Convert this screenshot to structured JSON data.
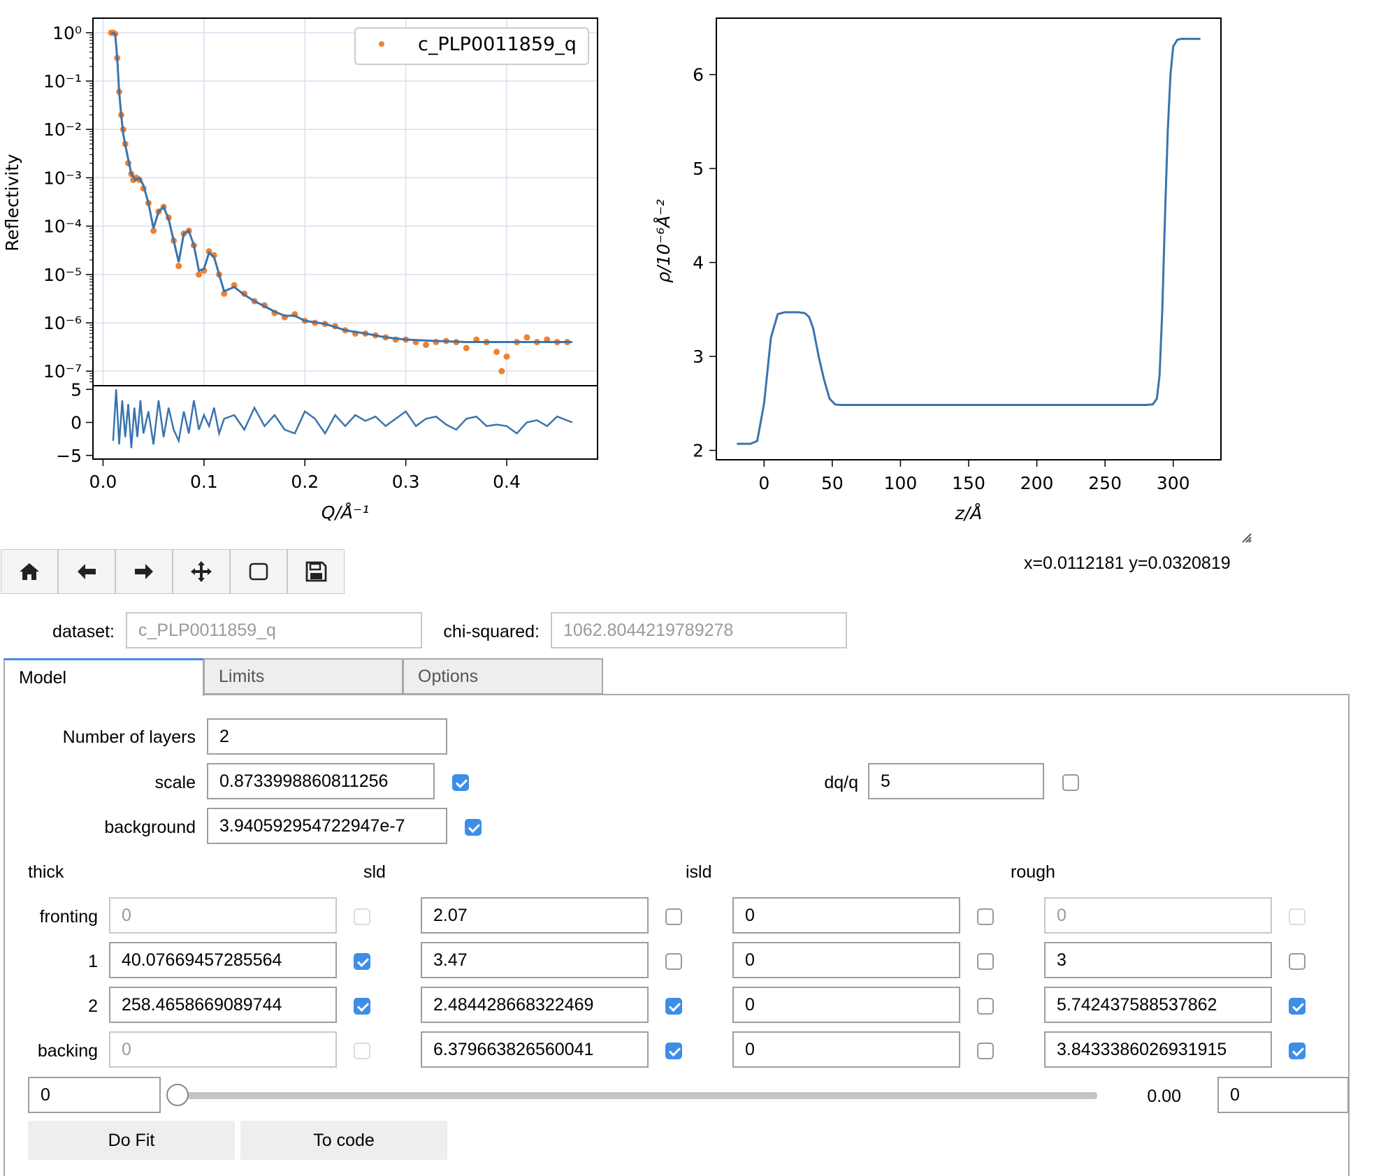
{
  "reflectivity_plot": {
    "ylabel": "Reflectivity",
    "xlabel": "Q/Å⁻¹",
    "legend": "c_PLP0011859_q",
    "y_ticks": [
      "10⁰",
      "10⁻¹",
      "10⁻²",
      "10⁻³",
      "10⁻⁴",
      "10⁻⁵",
      "10⁻⁶",
      "10⁻⁷"
    ],
    "resid_ticks": [
      "5",
      "0",
      "−5"
    ],
    "x_ticks": [
      "0.0",
      "0.1",
      "0.2",
      "0.3",
      "0.4"
    ],
    "colors": {
      "data": "#f08030",
      "fit": "#3a74ad"
    }
  },
  "chart_data": [
    {
      "type": "scatter",
      "ylabel": "Reflectivity",
      "xlabel": "Q/Å⁻¹",
      "yscale": "log",
      "ylim": [
        5e-08,
        2.0
      ],
      "xlim": [
        -0.01,
        0.49
      ],
      "grid": true,
      "legend_position": "top-right",
      "series": [
        {
          "name": "c_PLP0011859_q",
          "kind": "points",
          "x": [
            0.008,
            0.01,
            0.012,
            0.014,
            0.016,
            0.018,
            0.02,
            0.022,
            0.025,
            0.028,
            0.03,
            0.033,
            0.036,
            0.04,
            0.045,
            0.05,
            0.055,
            0.06,
            0.065,
            0.07,
            0.075,
            0.08,
            0.085,
            0.09,
            0.095,
            0.1,
            0.105,
            0.11,
            0.115,
            0.12,
            0.13,
            0.14,
            0.15,
            0.16,
            0.17,
            0.18,
            0.19,
            0.2,
            0.21,
            0.22,
            0.23,
            0.24,
            0.25,
            0.26,
            0.27,
            0.28,
            0.29,
            0.3,
            0.31,
            0.32,
            0.33,
            0.34,
            0.35,
            0.36,
            0.37,
            0.38,
            0.39,
            0.395,
            0.4,
            0.41,
            0.42,
            0.43,
            0.44,
            0.45,
            0.46
          ],
          "y": [
            1.0,
            1.0,
            0.95,
            0.3,
            0.06,
            0.02,
            0.01,
            0.005,
            0.002,
            0.0012,
            0.0009,
            0.001,
            0.0009,
            0.0006,
            0.0003,
            8e-05,
            0.0002,
            0.00025,
            0.00015,
            5e-05,
            1.5e-05,
            7e-05,
            8e-05,
            4e-05,
            1e-05,
            1.2e-05,
            3e-05,
            2.5e-05,
            1e-05,
            4e-06,
            6e-06,
            4e-06,
            2.8e-06,
            2.3e-06,
            1.6e-06,
            1.3e-06,
            1.5e-06,
            1.1e-06,
            1e-06,
            9.5e-07,
            8.5e-07,
            7e-07,
            6e-07,
            6e-07,
            5.5e-07,
            5e-07,
            4.5e-07,
            4.5e-07,
            4e-07,
            3.5e-07,
            4e-07,
            4.2e-07,
            4e-07,
            3e-07,
            4.5e-07,
            4e-07,
            2.5e-07,
            1e-07,
            2e-07,
            4e-07,
            5e-07,
            4e-07,
            4.5e-07,
            4e-07,
            4e-07
          ]
        },
        {
          "name": "fit",
          "kind": "line",
          "x": [
            0.008,
            0.012,
            0.014,
            0.016,
            0.018,
            0.02,
            0.024,
            0.028,
            0.032,
            0.036,
            0.04,
            0.045,
            0.05,
            0.055,
            0.06,
            0.065,
            0.07,
            0.075,
            0.08,
            0.085,
            0.09,
            0.095,
            0.1,
            0.105,
            0.11,
            0.115,
            0.12,
            0.13,
            0.14,
            0.15,
            0.16,
            0.17,
            0.18,
            0.19,
            0.2,
            0.22,
            0.24,
            0.26,
            0.28,
            0.3,
            0.33,
            0.36,
            0.4,
            0.43,
            0.465
          ],
          "y": [
            1.0,
            0.95,
            0.3,
            0.06,
            0.02,
            0.008,
            0.003,
            0.0012,
            0.0009,
            0.001,
            0.0007,
            0.0003,
            9e-05,
            0.0002,
            0.00025,
            0.00014,
            5e-05,
            1.8e-05,
            7e-05,
            8e-05,
            4e-05,
            1.2e-05,
            1.3e-05,
            2.8e-05,
            2.3e-05,
            1e-05,
            4.5e-06,
            5.5e-06,
            3.8e-06,
            2.8e-06,
            2.2e-06,
            1.7e-06,
            1.4e-06,
            1.4e-06,
            1.1e-06,
            9.5e-07,
            7e-07,
            6e-07,
            5e-07,
            4.5e-07,
            4.2e-07,
            4e-07,
            4e-07,
            4e-07,
            4e-07
          ]
        }
      ]
    },
    {
      "type": "line",
      "ylabel": "",
      "xlabel": "Q/Å⁻¹",
      "ylim": [
        -5,
        5
      ],
      "xlim": [
        -0.01,
        0.49
      ],
      "series": [
        {
          "name": "residuals",
          "x": [
            0.01,
            0.013,
            0.016,
            0.019,
            0.022,
            0.025,
            0.028,
            0.031,
            0.034,
            0.037,
            0.04,
            0.045,
            0.05,
            0.055,
            0.06,
            0.065,
            0.07,
            0.075,
            0.08,
            0.085,
            0.09,
            0.095,
            0.1,
            0.105,
            0.11,
            0.115,
            0.12,
            0.13,
            0.14,
            0.15,
            0.16,
            0.17,
            0.18,
            0.19,
            0.2,
            0.21,
            0.22,
            0.23,
            0.24,
            0.25,
            0.26,
            0.27,
            0.28,
            0.29,
            0.3,
            0.31,
            0.32,
            0.33,
            0.34,
            0.35,
            0.36,
            0.37,
            0.38,
            0.39,
            0.4,
            0.41,
            0.42,
            0.43,
            0.44,
            0.45,
            0.465
          ],
          "y": [
            -2.5,
            4.5,
            -3,
            3,
            -2,
            2.5,
            -3.5,
            2,
            -2,
            3,
            -1.5,
            1.5,
            -3,
            3,
            -2,
            2,
            -1,
            -2.5,
            1.5,
            -1.5,
            3,
            -1,
            1,
            -0.5,
            2,
            -1.5,
            0.5,
            1,
            -1,
            2,
            -0.5,
            1,
            -1,
            -1.5,
            1.5,
            0.5,
            -1.5,
            1,
            -0.5,
            1,
            0.2,
            0.8,
            -0.5,
            0.5,
            1.5,
            -0.5,
            0.5,
            0.8,
            -0.3,
            -1,
            0.5,
            0.8,
            -0.5,
            -0.3,
            -0.5,
            -1.5,
            0,
            0.3,
            -0.5,
            0.8,
            0
          ]
        }
      ]
    },
    {
      "type": "line",
      "ylabel": "ρ/10⁻⁶Å⁻²",
      "xlabel": "z/Å",
      "xlim": [
        -35,
        335
      ],
      "ylim": [
        1.9,
        6.6
      ],
      "x_ticks": [
        0,
        50,
        100,
        150,
        200,
        250,
        300
      ],
      "y_ticks": [
        2,
        3,
        4,
        5,
        6
      ],
      "grid": false,
      "series": [
        {
          "name": "sld_profile",
          "x": [
            -20,
            -10,
            -5,
            0,
            5,
            10,
            15,
            20,
            25,
            30,
            33,
            36,
            40,
            44,
            48,
            52,
            55,
            60,
            100,
            150,
            200,
            250,
            280,
            285,
            288,
            290,
            292,
            294,
            296,
            298,
            300,
            303,
            306,
            310,
            315,
            320
          ],
          "y": [
            2.07,
            2.07,
            2.1,
            2.5,
            3.2,
            3.45,
            3.47,
            3.47,
            3.47,
            3.46,
            3.42,
            3.3,
            3.0,
            2.75,
            2.55,
            2.49,
            2.484,
            2.484,
            2.484,
            2.484,
            2.484,
            2.484,
            2.484,
            2.49,
            2.55,
            2.8,
            3.5,
            4.5,
            5.4,
            6.0,
            6.3,
            6.37,
            6.38,
            6.38,
            6.38,
            6.38
          ]
        }
      ]
    }
  ],
  "sld_plot": {
    "ylabel": "ρ/10⁻⁶Å⁻²",
    "xlabel": "z/Å",
    "x_ticks": [
      "0",
      "50",
      "100",
      "150",
      "200",
      "250",
      "300"
    ],
    "y_ticks": [
      "2",
      "3",
      "4",
      "5",
      "6"
    ]
  },
  "coords_readout": "x=0.0112181 y=0.0320819",
  "toolbar": [
    "home-icon",
    "back-arrow-icon",
    "forward-arrow-icon",
    "move-icon",
    "zoom-rect-icon",
    "save-icon"
  ],
  "dataset": {
    "label": "dataset:",
    "value": "c_PLP0011859_q"
  },
  "chi": {
    "label": "chi-squared:",
    "value": "1062.8044219789278"
  },
  "tabs": [
    "Model",
    "Limits",
    "Options"
  ],
  "model": {
    "layers_label": "Number of layers",
    "layers_value": "2",
    "scale_label": "scale",
    "scale_value": "0.8733998860811256",
    "scale_checked": true,
    "dqq_label": "dq/q",
    "dqq_value": "5",
    "dqq_checked": false,
    "bkg_label": "background",
    "bkg_value": "3.940592954722947e-7",
    "bkg_checked": true,
    "col_headers": [
      "thick",
      "sld",
      "isld",
      "rough"
    ],
    "rows": [
      {
        "label": "fronting",
        "thick": "0",
        "thick_chk": false,
        "thick_dis": true,
        "sld": "2.07",
        "sld_chk": false,
        "isld": "0",
        "isld_chk": false,
        "rough": "0",
        "rough_chk": false,
        "rough_dis": true
      },
      {
        "label": "1",
        "thick": "40.07669457285564",
        "thick_chk": true,
        "thick_dis": false,
        "sld": "3.47",
        "sld_chk": false,
        "isld": "0",
        "isld_chk": false,
        "rough": "3",
        "rough_chk": false,
        "rough_dis": false
      },
      {
        "label": "2",
        "thick": "258.4658669089744",
        "thick_chk": true,
        "thick_dis": false,
        "sld": "2.484428668322469",
        "sld_chk": true,
        "isld": "0",
        "isld_chk": false,
        "rough": "5.742437588537862",
        "rough_chk": true,
        "rough_dis": false
      },
      {
        "label": "backing",
        "thick": "0",
        "thick_chk": false,
        "thick_dis": true,
        "sld": "6.379663826560041",
        "sld_chk": true,
        "isld": "0",
        "isld_chk": false,
        "rough": "3.8433386026931915",
        "rough_chk": true,
        "rough_dis": false
      }
    ],
    "slider_left": "0",
    "slider_value": "0.00",
    "slider_level": 0.0,
    "slider_right": "0",
    "do_fit": "Do Fit",
    "to_code": "To code"
  }
}
